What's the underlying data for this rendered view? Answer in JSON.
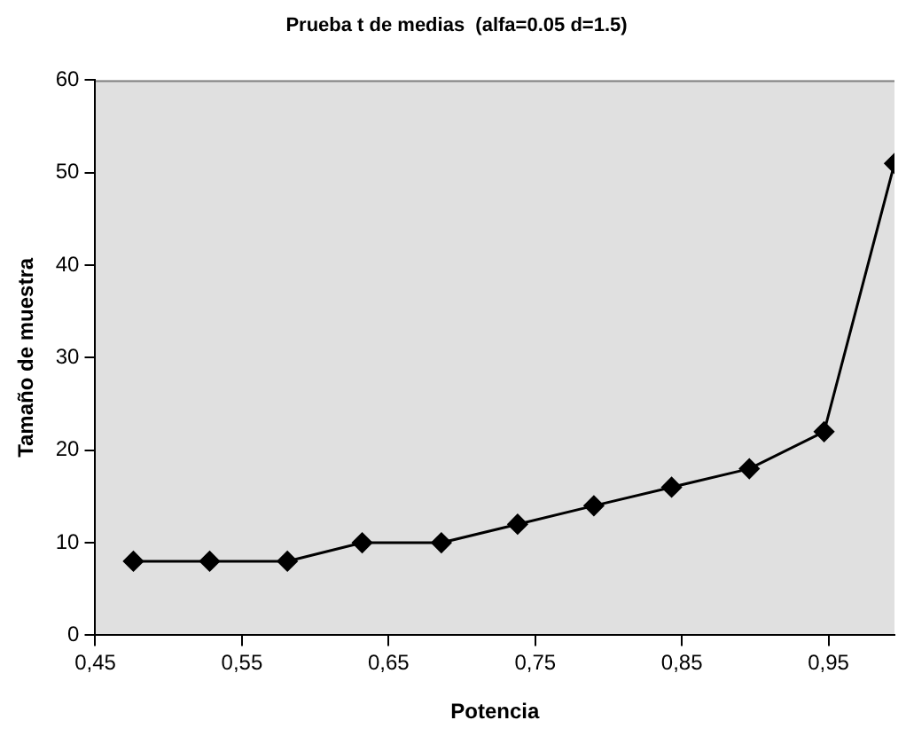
{
  "chart_data": {
    "type": "line",
    "title": "Prueba t de medias  (alfa=0.05 d=1.5)",
    "xlabel": "Potencia",
    "ylabel": "Tamaño de muestra",
    "x": [
      0.476,
      0.528,
      0.581,
      0.632,
      0.686,
      0.738,
      0.79,
      0.843,
      0.896,
      0.947,
      0.995
    ],
    "series": [
      {
        "color": "#000000",
        "values": [
          8,
          8,
          8,
          10,
          10,
          12,
          14,
          16,
          18,
          22,
          51
        ]
      }
    ],
    "xlim": [
      0.45,
      0.995
    ],
    "xticks": [
      {
        "value": 0.45,
        "label": "0,45"
      },
      {
        "value": 0.55,
        "label": "0,55"
      },
      {
        "value": 0.65,
        "label": "0,65"
      },
      {
        "value": 0.75,
        "label": "0,75"
      },
      {
        "value": 0.85,
        "label": "0,85"
      },
      {
        "value": 0.95,
        "label": "0,95"
      }
    ],
    "ylim": [
      0,
      60
    ],
    "yticks": [
      0,
      10,
      20,
      30,
      40,
      50,
      60
    ],
    "grid": false,
    "legend": false,
    "marker": "diamond",
    "line_style": "solid"
  }
}
